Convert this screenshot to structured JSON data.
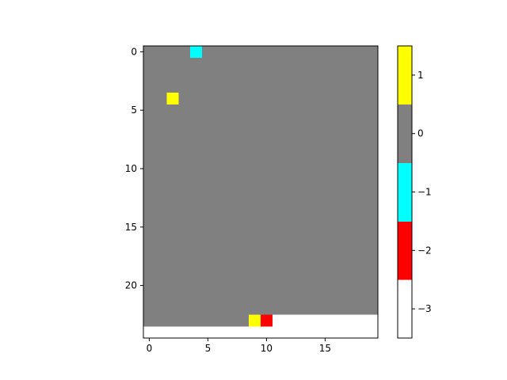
{
  "chart_data": {
    "type": "heatmap",
    "title": "",
    "xlabel": "",
    "ylabel": "",
    "n_rows": 24,
    "n_cols": 20,
    "default_value": 0,
    "cells": [
      {
        "row": 0,
        "col": 4,
        "value": -1
      },
      {
        "row": 4,
        "col": 2,
        "value": 1
      },
      {
        "row": 23,
        "col": 9,
        "value": 1
      },
      {
        "row": 23,
        "col": 10,
        "value": -2
      },
      {
        "row": 23,
        "col": 11,
        "value": -3
      },
      {
        "row": 23,
        "col": 12,
        "value": -3
      },
      {
        "row": 23,
        "col": 13,
        "value": -3
      },
      {
        "row": 23,
        "col": 14,
        "value": -3
      },
      {
        "row": 23,
        "col": 15,
        "value": -3
      },
      {
        "row": 23,
        "col": 16,
        "value": -3
      },
      {
        "row": 23,
        "col": 17,
        "value": -3
      },
      {
        "row": 23,
        "col": 18,
        "value": -3
      },
      {
        "row": 23,
        "col": 19,
        "value": -3
      }
    ],
    "x_ticks": [
      0,
      5,
      10,
      15
    ],
    "x_tick_labels": [
      "0",
      "5",
      "10",
      "15"
    ],
    "y_ticks": [
      0,
      5,
      10,
      15,
      20
    ],
    "y_tick_labels": [
      "0",
      "5",
      "10",
      "15",
      "20"
    ],
    "xlim": [
      -0.5,
      19.5
    ],
    "ylim": [
      24.5,
      -0.5
    ],
    "colorbar": {
      "levels": [
        {
          "value": -3,
          "color": "#ffffff"
        },
        {
          "value": -2,
          "color": "#ff0000"
        },
        {
          "value": -1,
          "color": "#00ffff"
        },
        {
          "value": 0,
          "color": "#808080"
        },
        {
          "value": 1,
          "color": "#ffff00"
        }
      ],
      "ticks": [
        -3,
        -2,
        -1,
        0,
        1
      ],
      "tick_labels": [
        "−3",
        "−2",
        "−1",
        "0",
        "1"
      ],
      "range": [
        -3.5,
        1.5
      ]
    },
    "grid": false,
    "legend": "none"
  }
}
